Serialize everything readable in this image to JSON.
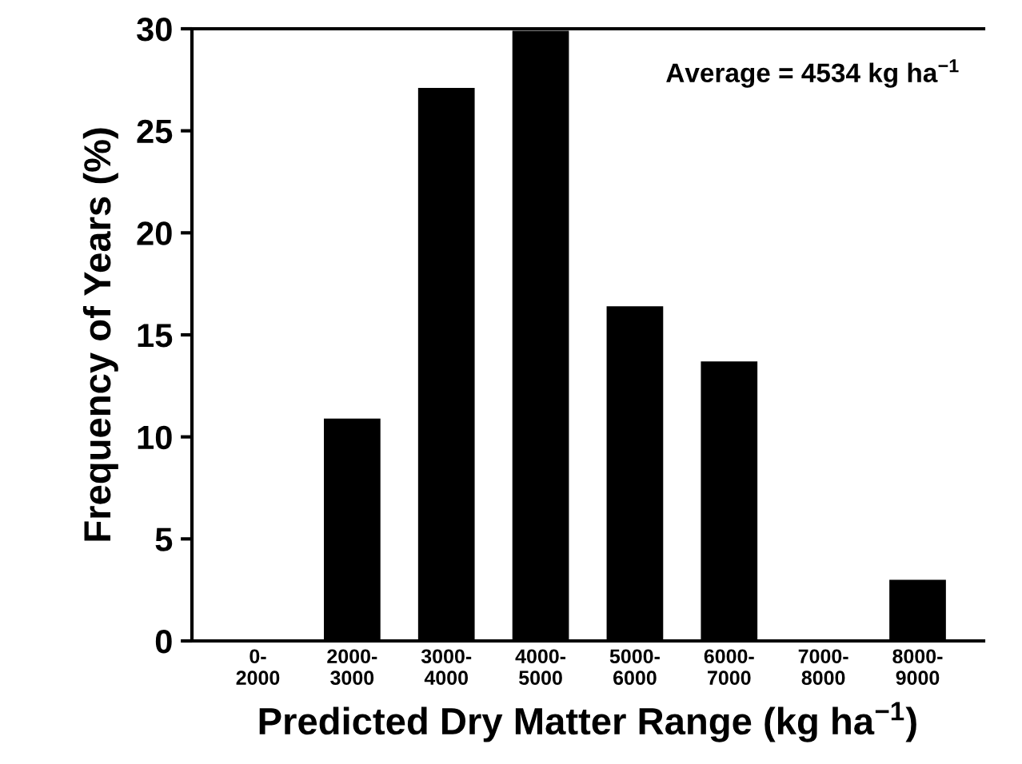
{
  "chart_data": {
    "type": "bar",
    "xlabel": "Predicted Dry Matter Range (kg ha$^{−1}$)",
    "ylabel": "Frequency of Years (%)",
    "categories": [
      "0-\n2000",
      "2000-\n3000",
      "3000-\n4000",
      "4000-\n5000",
      "5000-\n6000",
      "6000-\n7000",
      "7000-\n8000",
      "8000-\n9000"
    ],
    "values": [
      0,
      10.9,
      27.1,
      29.9,
      16.4,
      13.7,
      0,
      3.0
    ],
    "color": "#000000",
    "ylim": [
      0,
      30
    ],
    "yticks": [
      0,
      5,
      10,
      15,
      20,
      25,
      30
    ],
    "grid": false,
    "legend": false,
    "annotations": [
      "Average = 4534 kg ha$^{−1}$"
    ]
  }
}
